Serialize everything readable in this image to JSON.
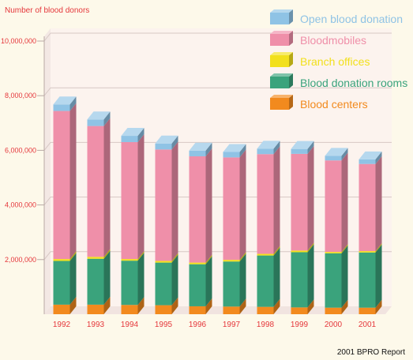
{
  "chart_data": {
    "type": "bar",
    "stacked": true,
    "three_d": true,
    "ylabel": "Number of blood donors",
    "ylim": [
      0,
      10000000
    ],
    "yticks": [
      2000000,
      4000000,
      6000000,
      8000000,
      10000000
    ],
    "ytick_labels": [
      "2,000,000",
      "4,000,000",
      "6,000,000",
      "8,000,000",
      "10,000,000"
    ],
    "categories": [
      "1992",
      "1993",
      "1994",
      "1995",
      "1996",
      "1997",
      "1998",
      "1999",
      "2000",
      "2001"
    ],
    "series": [
      {
        "name": "Blood centers",
        "values": [
          350000,
          350000,
          340000,
          330000,
          290000,
          280000,
          270000,
          250000,
          240000,
          240000
        ]
      },
      {
        "name": "Blood donation rooms",
        "values": [
          1600000,
          1680000,
          1620000,
          1560000,
          1540000,
          1650000,
          1880000,
          2020000,
          1990000,
          2020000
        ]
      },
      {
        "name": "Branch offices",
        "values": [
          70000,
          70000,
          60000,
          60000,
          60000,
          60000,
          60000,
          60000,
          50000,
          50000
        ]
      },
      {
        "name": "Bloodmobiles",
        "values": [
          5420000,
          4790000,
          4280000,
          4080000,
          3890000,
          3750000,
          3650000,
          3540000,
          3350000,
          3190000
        ]
      },
      {
        "name": "Open blood donation",
        "values": [
          240000,
          240000,
          230000,
          220000,
          210000,
          200000,
          200000,
          180000,
          170000,
          170000
        ]
      }
    ],
    "colors": {
      "Blood centers": "#f28a1e",
      "Blood donation rooms": "#3aa37c",
      "Branch offices": "#f2e01c",
      "Bloodmobiles": "#ef8fa9",
      "Open blood donation": "#8fc3e5"
    },
    "legend_order": [
      "Open blood donation",
      "Bloodmobiles",
      "Branch offices",
      "Blood donation rooms",
      "Blood centers"
    ],
    "legend_position": "top-right",
    "grid": true,
    "source": "2001 BPRO Report"
  }
}
